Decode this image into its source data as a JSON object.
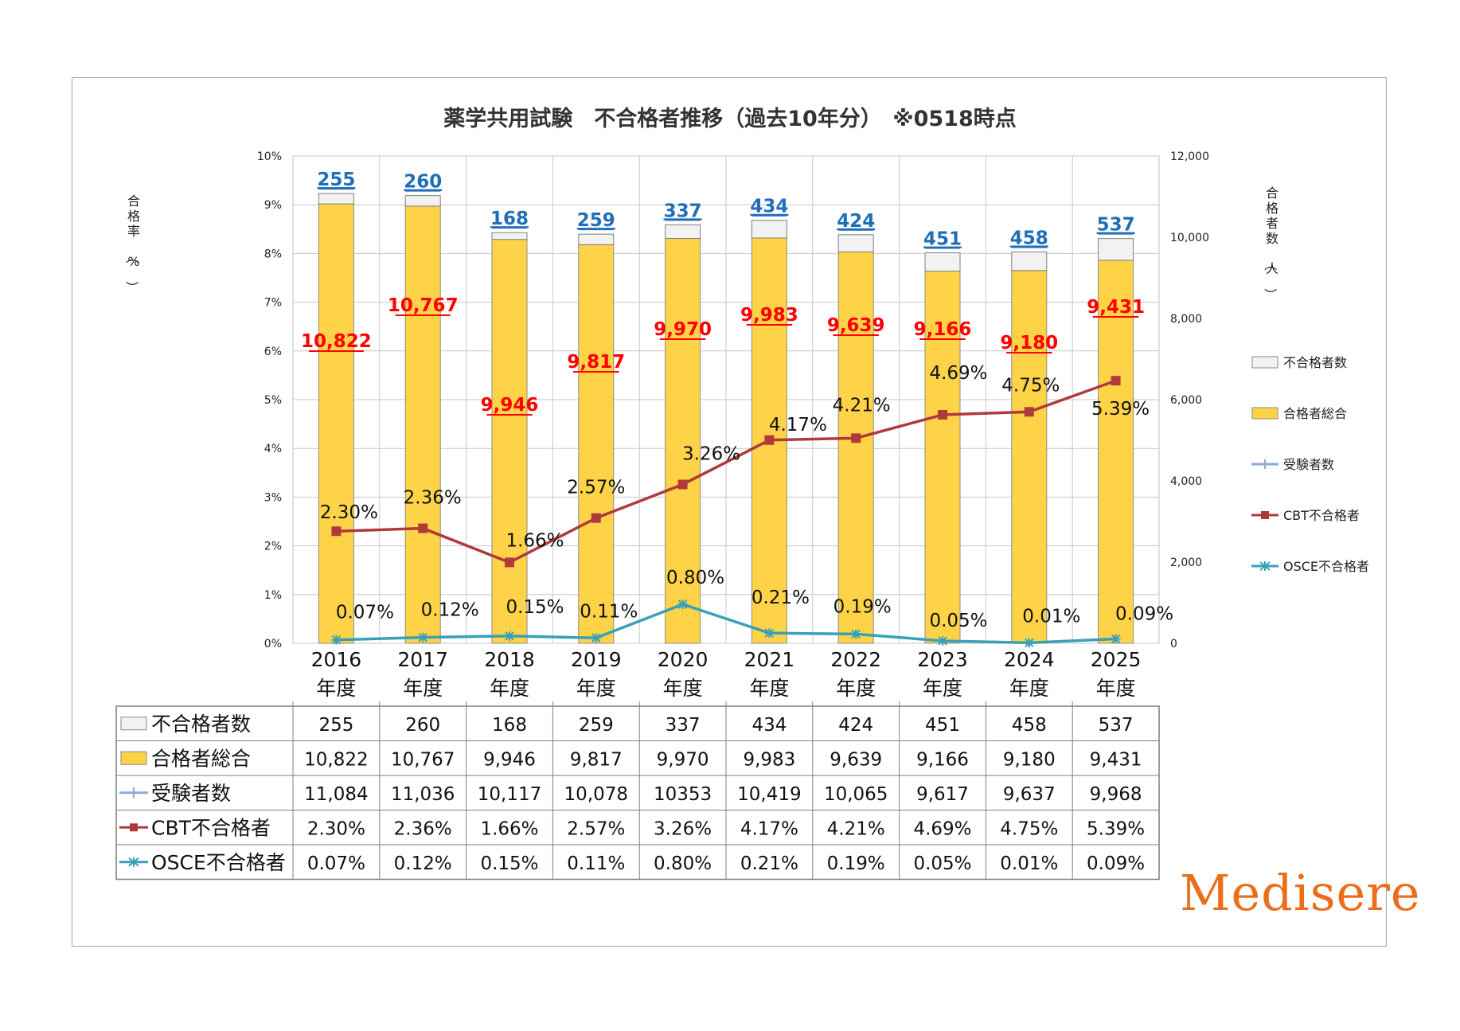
{
  "chart_data": {
    "type": "bar",
    "title": "薬学共用試験　不合格者推移（過去10年分）　※0518時点",
    "y_left_label": "合格率（%）",
    "y_right_label": "合格者数（人）",
    "y_left_range": [
      0,
      10
    ],
    "y_left_ticks": [
      "0%",
      "1%",
      "2%",
      "3%",
      "4%",
      "5%",
      "6%",
      "7%",
      "8%",
      "9%",
      "10%"
    ],
    "y_right_range": [
      0,
      12000
    ],
    "y_right_ticks": [
      "0",
      "2,000",
      "4,000",
      "6,000",
      "8,000",
      "10,000",
      "12,000"
    ],
    "categories": [
      "2016",
      "2017",
      "2018",
      "2019",
      "2020",
      "2021",
      "2022",
      "2023",
      "2024",
      "2025"
    ],
    "category_suffix": "年度",
    "grid": true,
    "legend_position": "right",
    "series": [
      {
        "name": "不合格者数",
        "kind": "stacked-bar",
        "color": "#f2f2f2",
        "values": [
          255,
          260,
          168,
          259,
          337,
          434,
          424,
          451,
          458,
          537
        ],
        "labels": [
          "255",
          "260",
          "168",
          "259",
          "337",
          "434",
          "424",
          "451",
          "458",
          "537"
        ],
        "label_color": "#1f6fb8"
      },
      {
        "name": "合格者総合",
        "kind": "stacked-bar",
        "color": "#ffd347",
        "values": [
          10822,
          10767,
          9946,
          9817,
          9970,
          9983,
          9639,
          9166,
          9180,
          9431
        ],
        "labels": [
          "10,822",
          "10,767",
          "9,946",
          "9,817",
          "9,970",
          "9,983",
          "9,639",
          "9,166",
          "9,180",
          "9,431"
        ],
        "label_color": "#ff0000"
      },
      {
        "name": "受験者数",
        "kind": "line-hidden",
        "color": "#8ea9db",
        "values": [
          11084,
          11036,
          10117,
          10078,
          10353,
          10419,
          10065,
          9617,
          9637,
          9968
        ],
        "labels": [
          "11,084",
          "11,036",
          "10,117",
          "10,078",
          "10353",
          "10,419",
          "10,065",
          "9,617",
          "9,637",
          "9,968"
        ]
      },
      {
        "name": "CBT不合格者",
        "kind": "line",
        "color": "#b03a3a",
        "values": [
          2.3,
          2.36,
          1.66,
          2.57,
          3.26,
          4.17,
          4.21,
          4.69,
          4.75,
          5.39
        ],
        "labels": [
          "2.30%",
          "2.36%",
          "1.66%",
          "2.57%",
          "3.26%",
          "4.17%",
          "4.21%",
          "4.69%",
          "4.75%",
          "5.39%"
        ]
      },
      {
        "name": "OSCE不合格者",
        "kind": "line",
        "color": "#3aa0b8",
        "values": [
          0.07,
          0.12,
          0.15,
          0.11,
          0.8,
          0.21,
          0.19,
          0.05,
          0.01,
          0.09
        ],
        "labels": [
          "0.07%",
          "0.12%",
          "0.15%",
          "0.11%",
          "0.80%",
          "0.21%",
          "0.19%",
          "0.05%",
          "0.01%",
          "0.09%"
        ]
      }
    ]
  },
  "logo_text": "Medisere"
}
